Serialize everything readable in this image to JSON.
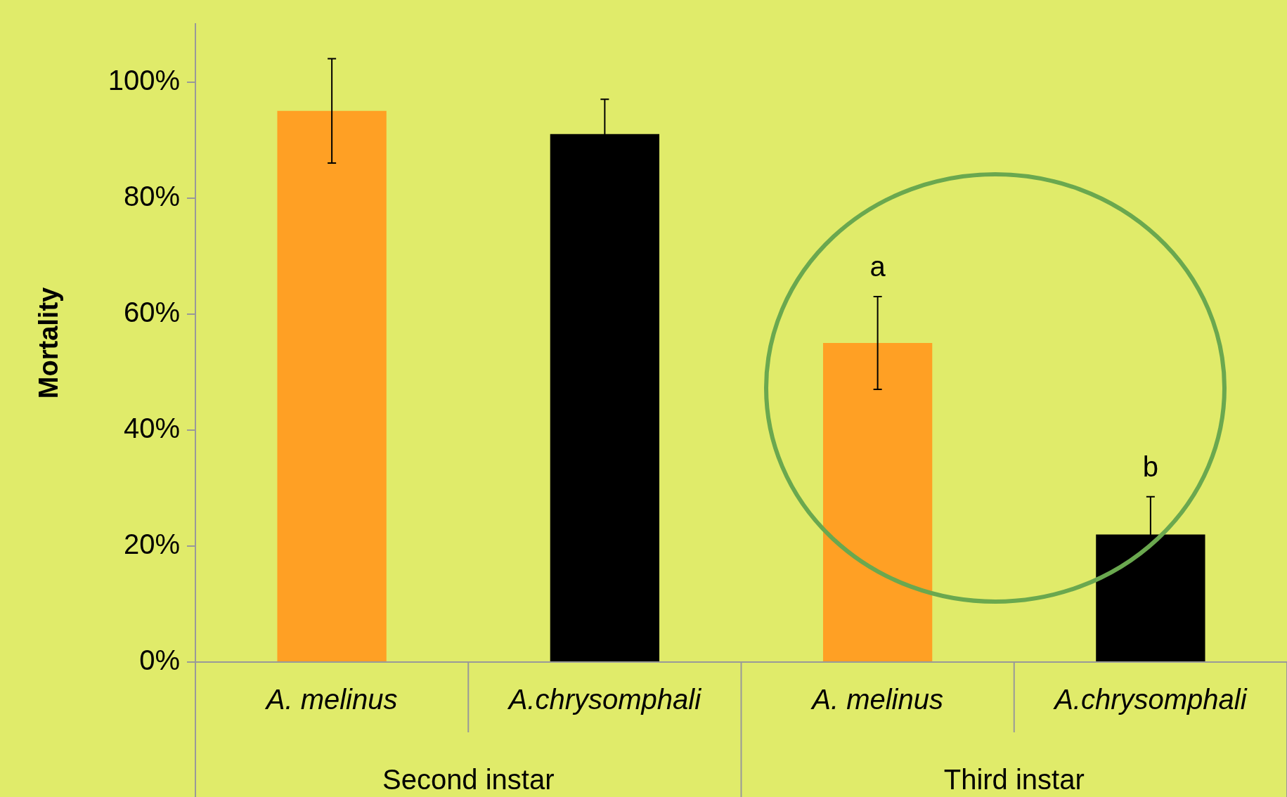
{
  "chart_data": {
    "type": "bar",
    "ylabel": "Mortality",
    "categories": [
      "A. melinus",
      "A.chrysomphali",
      "A. melinus",
      "A.chrysomphali"
    ],
    "values": [
      95,
      91,
      55,
      22
    ],
    "colors": [
      "#ffa024",
      "#000000",
      "#ffa024",
      "#000000"
    ],
    "errors": [
      9,
      6,
      8,
      6.5
    ],
    "ylim": [
      0,
      110
    ],
    "yticks": [
      {
        "value": 0,
        "label": "0%"
      },
      {
        "value": 20,
        "label": "20%"
      },
      {
        "value": 40,
        "label": "40%"
      },
      {
        "value": 60,
        "label": "60%"
      },
      {
        "value": 80,
        "label": "80%"
      },
      {
        "value": 100,
        "label": "100%"
      }
    ],
    "grid": false,
    "legend": false,
    "annotations": [
      "a",
      "b",
      "Second instar",
      "Third instar"
    ]
  }
}
